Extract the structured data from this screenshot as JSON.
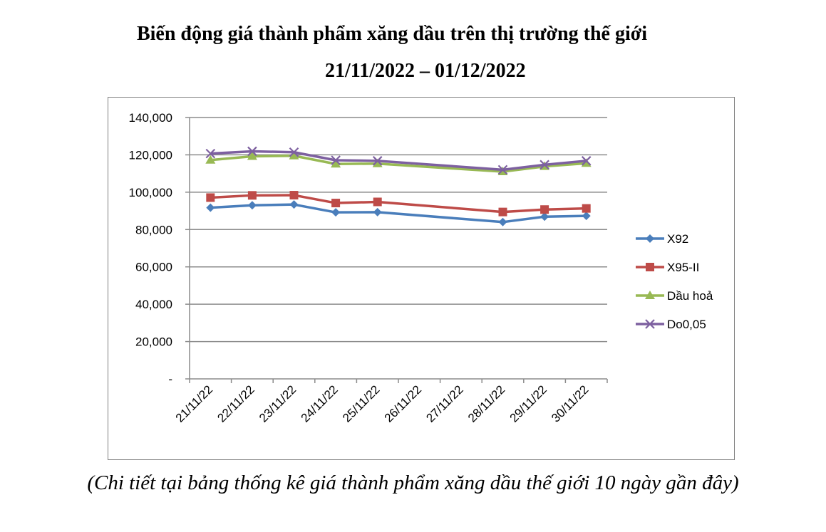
{
  "title": "Biến động giá thành phẩm xăng dầu trên thị trường thế giới",
  "subtitle": "21/11/2022 – 01/12/2022",
  "caption": "(Chi tiết tại bảng thống kê giá thành phẩm xăng dầu thế giới 10 ngày gần đây)",
  "chart_data": {
    "type": "line",
    "title": "",
    "xlabel": "",
    "ylabel": "",
    "categories": [
      "21/11/22",
      "22/11/22",
      "23/11/22",
      "24/11/22",
      "25/11/22",
      "26/11/22",
      "27/11/22",
      "28/11/22",
      "29/11/22",
      "30/11/22"
    ],
    "ylim": [
      0,
      140000
    ],
    "y_ticks": [
      0,
      20000,
      40000,
      60000,
      80000,
      100000,
      120000,
      140000
    ],
    "y_tick_labels": [
      "-",
      "20,000",
      "40,000",
      "60,000",
      "80,000",
      "100,000",
      "120,000",
      "140,000"
    ],
    "grid": true,
    "legend_position": "right",
    "series": [
      {
        "name": "X92",
        "color": "#4a7ebb",
        "marker": "diamond",
        "values": [
          91700,
          93000,
          93400,
          89200,
          89300,
          null,
          null,
          84000,
          86900,
          87300
        ]
      },
      {
        "name": "X95-II",
        "color": "#be4b48",
        "marker": "square",
        "values": [
          97100,
          98300,
          98400,
          94200,
          94800,
          null,
          null,
          89400,
          90700,
          91300
        ]
      },
      {
        "name": "Dầu hoả",
        "color": "#98b954",
        "marker": "triangle",
        "values": [
          117200,
          119200,
          119500,
          115100,
          115300,
          null,
          null,
          111000,
          113800,
          115500
        ]
      },
      {
        "name": "Do0,05",
        "color": "#7d60a0",
        "marker": "x",
        "values": [
          120700,
          121900,
          121400,
          117100,
          116800,
          null,
          null,
          112000,
          114700,
          116800
        ]
      }
    ]
  }
}
